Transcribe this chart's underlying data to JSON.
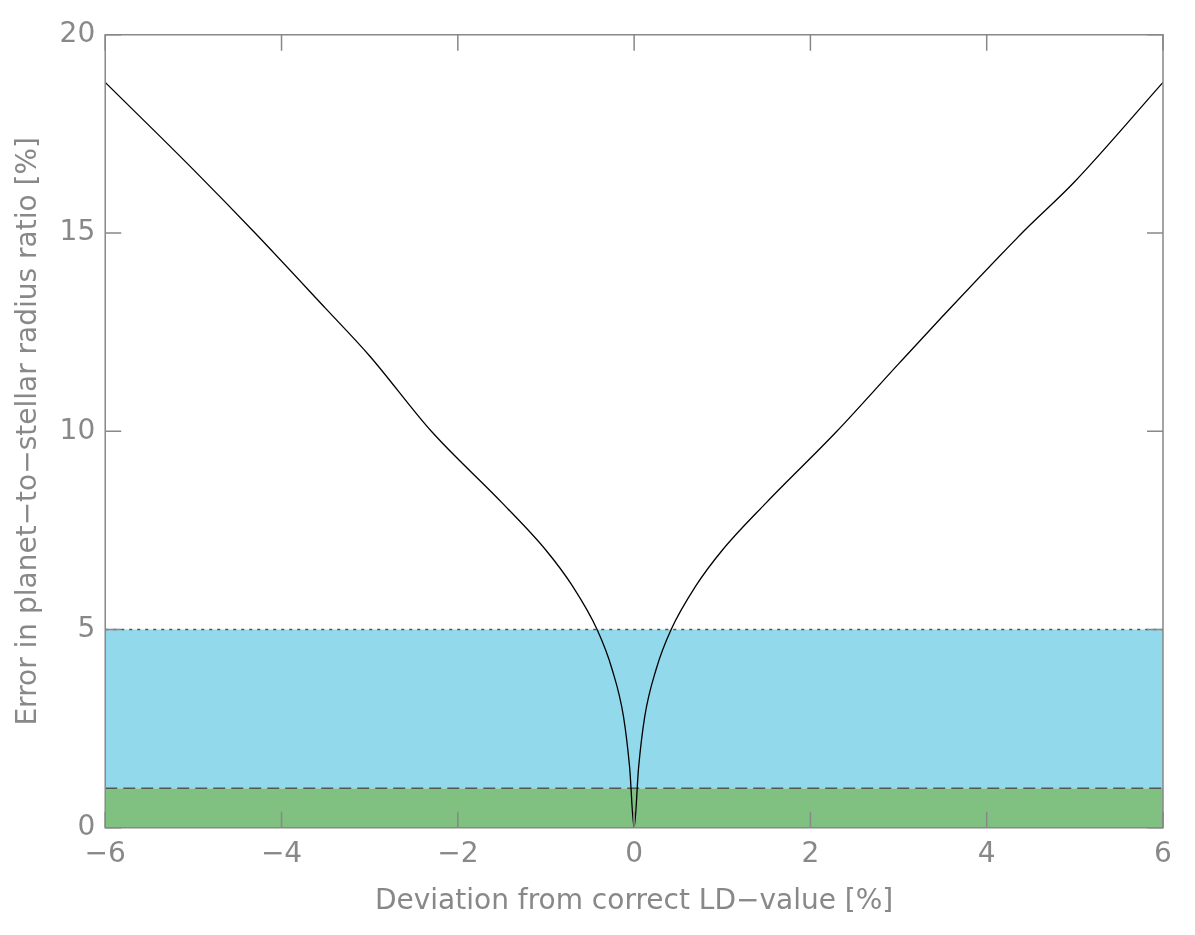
{
  "chart_data": {
    "type": "line",
    "xlabel": "Deviation from correct LD−value [%]",
    "ylabel": "Error in planet−to−stellar radius ratio [%]",
    "series": [
      {
        "color": "#000000",
        "x": [
          -6,
          -5,
          -4.3,
          -3.5,
          -3,
          -2.3,
          -1.5,
          -1,
          -0.7,
          -0.42,
          -0.25,
          -0.12,
          -0.05,
          0,
          0.05,
          0.12,
          0.25,
          0.42,
          0.7,
          1,
          1.5,
          2.3,
          3,
          3.5,
          4.4,
          5,
          6
        ],
        "values": [
          18.8,
          16.6,
          15,
          13.1,
          11.9,
          10,
          8.2,
          7,
          6.1,
          5,
          4,
          2.8,
          1.5,
          0,
          1.5,
          2.8,
          4,
          5,
          6.1,
          7,
          8.2,
          10,
          11.7,
          12.9,
          15,
          16.3,
          18.8
        ]
      }
    ],
    "xlim": [
      -6,
      6
    ],
    "xticks": [
      -6,
      -4,
      -2,
      0,
      2,
      4,
      6
    ],
    "ylim": [
      0,
      20
    ],
    "yticks": [
      0,
      5,
      10,
      15,
      20
    ],
    "grid": false,
    "legend": false,
    "marker": "none",
    "line_style": "solid",
    "bands": [
      {
        "axis": "y",
        "from": 0,
        "to": 1,
        "color": "#80c080"
      },
      {
        "axis": "y",
        "from": 1,
        "to": 5,
        "color": "#92d9eb"
      }
    ],
    "ref_lines": [
      {
        "axis": "y",
        "value": 1,
        "line_style": "dashed",
        "color": "#555555"
      },
      {
        "axis": "y",
        "value": 5,
        "line_style": "dotted",
        "color": "#555555"
      }
    ]
  }
}
